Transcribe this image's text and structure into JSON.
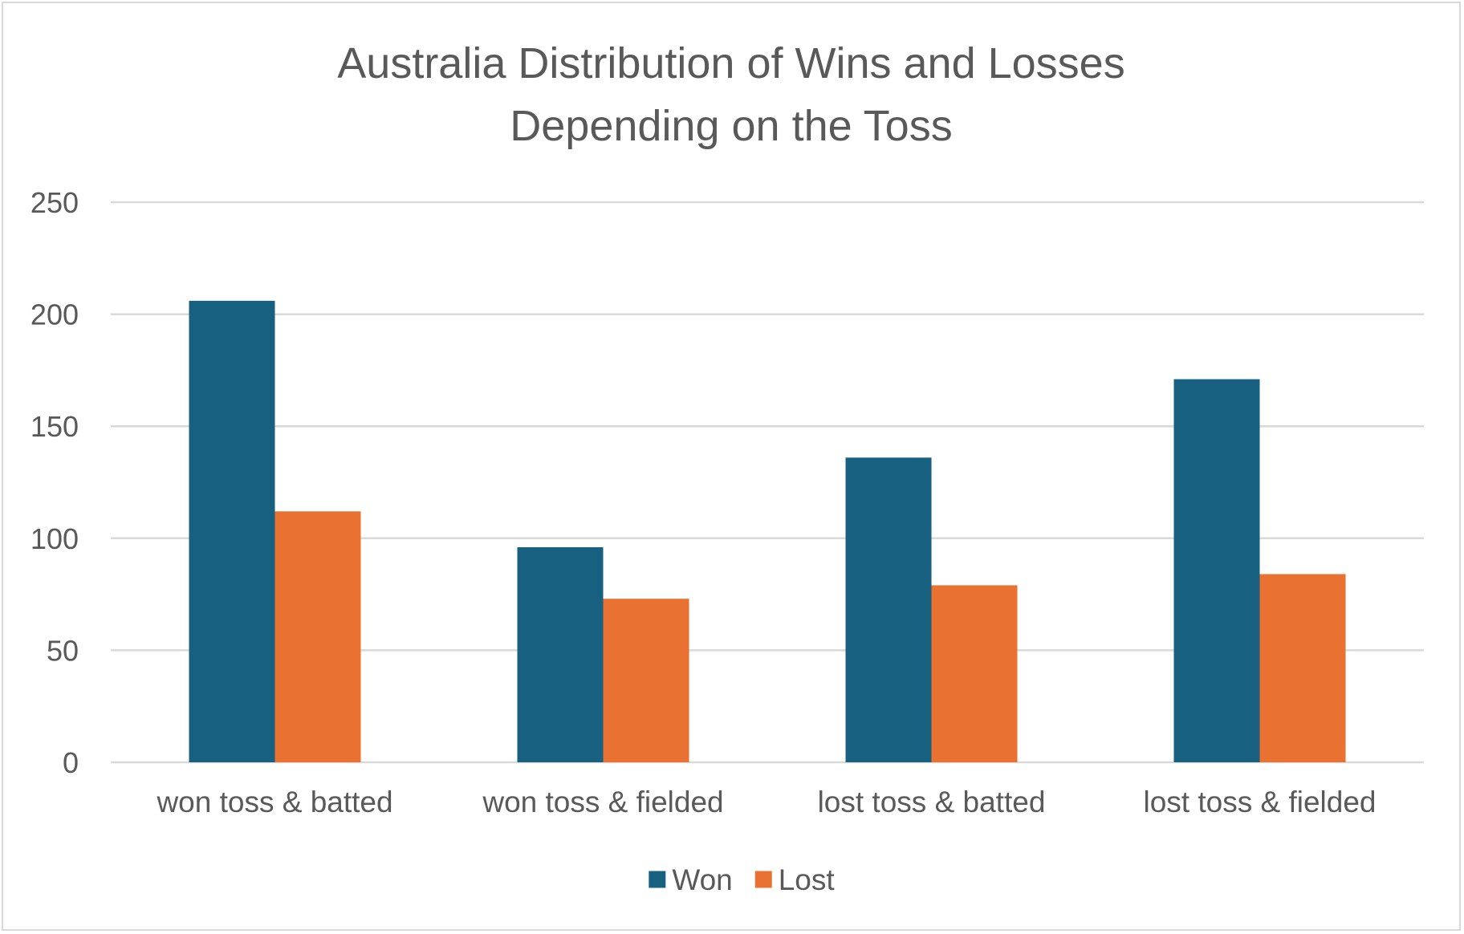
{
  "chart_data": {
    "type": "bar",
    "title": "Australia Distribution of Wins and Losses Depending on the Toss",
    "title_lines": [
      "Australia Distribution of Wins and Losses",
      "Depending on the Toss"
    ],
    "categories": [
      "won toss & batted",
      "won toss & fielded",
      "lost toss & batted",
      "lost toss & fielded"
    ],
    "series": [
      {
        "name": "Won",
        "color": "#17607f",
        "values": [
          206,
          96,
          136,
          171
        ]
      },
      {
        "name": "Lost",
        "color": "#e97132",
        "values": [
          112,
          73,
          79,
          84
        ]
      }
    ],
    "xlabel": "",
    "ylabel": "",
    "ylim": [
      0,
      250
    ],
    "yticks": [
      0,
      50,
      100,
      150,
      200,
      250
    ],
    "grid": true,
    "legend": "bottom-center"
  }
}
